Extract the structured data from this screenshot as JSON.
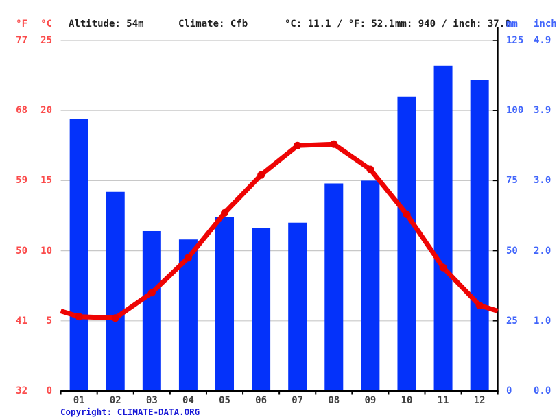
{
  "header": {
    "f_unit": "°F",
    "c_unit": "°C",
    "altitude": "Altitude: 54m",
    "climate": "Climate: Cfb",
    "temp_summary": "°C: 11.1 / °F: 52.1",
    "precip_summary": "mm: 940 / inch: 37.0",
    "mm_unit": "mm",
    "inch_unit": "inch"
  },
  "axes": {
    "left_f_labels": [
      "77",
      "68",
      "59",
      "50",
      "41",
      "32"
    ],
    "left_c_labels": [
      "25",
      "20",
      "15",
      "10",
      "5",
      "0"
    ],
    "right_mm_labels": [
      "125",
      "100",
      "75",
      "50",
      "25",
      "0"
    ],
    "right_inch_labels": [
      "4.9",
      "3.9",
      "3.0",
      "2.0",
      "1.0",
      "0.0"
    ]
  },
  "copyright": {
    "prefix": "Copyright: ",
    "link": "CLIMATE-DATA.ORG"
  },
  "colors": {
    "bar": "#0432fa",
    "line": "#ee0404",
    "marker": "#e60000",
    "grid": "#c8c8c8",
    "axis": "#000000",
    "red_label": "#fb4b4b",
    "blue_label": "#4165fb",
    "copyright": "#1717d6"
  },
  "chart_data": {
    "type": "climograph (bar + line)",
    "categories": [
      "01",
      "02",
      "03",
      "04",
      "05",
      "06",
      "07",
      "08",
      "09",
      "10",
      "11",
      "12"
    ],
    "series": [
      {
        "name": "precipitation",
        "type": "bar",
        "unit": "mm",
        "values": [
          97,
          71,
          57,
          54,
          62,
          58,
          60,
          74,
          75,
          105,
          116,
          111
        ],
        "total_mm": 940,
        "total_inch": 37.0
      },
      {
        "name": "temperature",
        "type": "line",
        "unit": "°C",
        "values": [
          5.3,
          5.2,
          7.0,
          9.5,
          12.7,
          15.4,
          17.5,
          17.6,
          15.8,
          12.6,
          8.8,
          6.1
        ],
        "edge_values": {
          "left": 5.7,
          "right": 5.7
        },
        "mean_c": 11.1,
        "mean_f": 52.1
      }
    ],
    "y_axis_left": {
      "unit": "°C",
      "min": 0,
      "max": 25,
      "ticks": [
        25,
        20,
        15,
        10,
        5,
        0
      ],
      "ticks_f": [
        77,
        68,
        59,
        50,
        41,
        32
      ]
    },
    "y_axis_right": {
      "unit": "mm",
      "min": 0,
      "max": 125,
      "ticks": [
        125,
        100,
        75,
        50,
        25,
        0
      ],
      "ticks_inch": [
        4.9,
        3.9,
        3.0,
        2.0,
        1.0,
        0.0
      ]
    },
    "grid": true,
    "legend": false,
    "title": ""
  }
}
